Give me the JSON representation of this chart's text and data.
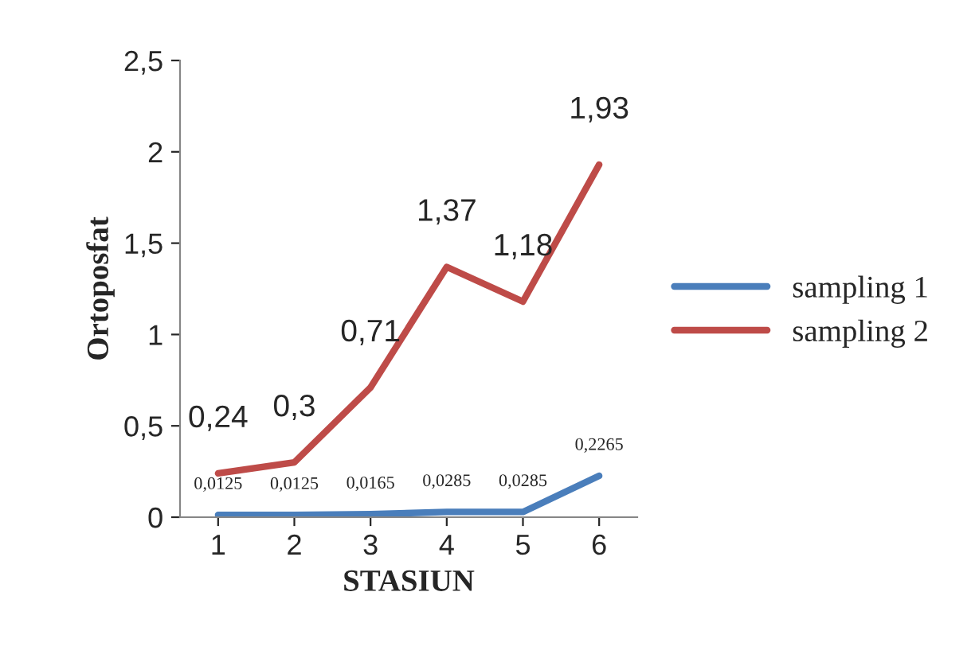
{
  "chart_data": {
    "type": "line",
    "xlabel": "STASIUN",
    "ylabel": "Ortoposfat",
    "categories": [
      "1",
      "2",
      "3",
      "4",
      "5",
      "6"
    ],
    "series": [
      {
        "name": "sampling 1",
        "color": "#4a7ebb",
        "values": [
          0.0125,
          0.0125,
          0.0165,
          0.0285,
          0.0285,
          0.2265
        ],
        "value_labels": [
          "0,0125",
          "0,0125",
          "0,0165",
          "0,0285",
          "0,0285",
          "0,2265"
        ]
      },
      {
        "name": "sampling 2",
        "color": "#be4b48",
        "values": [
          0.24,
          0.3,
          0.71,
          1.37,
          1.18,
          1.93
        ],
        "value_labels": [
          "0,24",
          "0,3",
          "0,71",
          "1,37",
          "1,18",
          "1,93"
        ]
      }
    ],
    "ylim": [
      0,
      2.5
    ],
    "yticks": [
      0,
      {
        "value": 0.5,
        "label": "0,5"
      },
      1,
      {
        "value": 1.5,
        "label": "1,5"
      },
      2,
      {
        "value": 2.5,
        "label": "2,5"
      }
    ],
    "grid": false,
    "legend": "right",
    "marker": "none",
    "line_style": "solid"
  }
}
